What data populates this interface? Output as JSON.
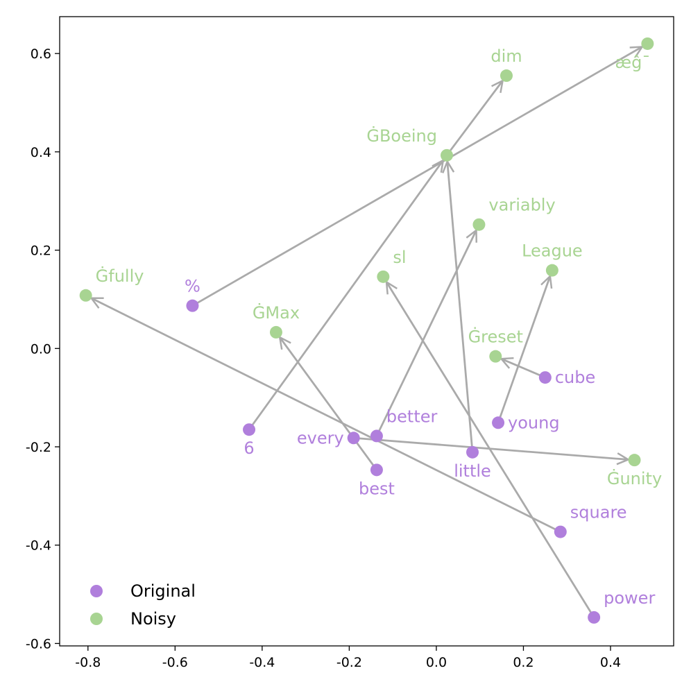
{
  "chart_data": {
    "type": "scatter",
    "title": "",
    "xlabel": "",
    "ylabel": "",
    "xlim": [
      -0.865,
      0.545
    ],
    "ylim": [
      -0.605,
      0.675
    ],
    "xticks": [
      -0.8,
      -0.6,
      -0.4,
      -0.2,
      0.0,
      0.2,
      0.4
    ],
    "xtick_labels": [
      "-0.8",
      "-0.6",
      "-0.4",
      "-0.2",
      "0.0",
      "0.2",
      "0.4"
    ],
    "yticks": [
      -0.6,
      -0.4,
      -0.2,
      0.0,
      0.2,
      0.4,
      0.6
    ],
    "ytick_labels": [
      "-0.6",
      "-0.4",
      "-0.2",
      "0.0",
      "0.2",
      "0.4",
      "0.6"
    ],
    "grid": false,
    "legend_position": "lower-left",
    "colors": {
      "original": "#b07fdc",
      "noisy": "#a8d492",
      "arrow": "#aaaaaa"
    },
    "series": [
      {
        "name": "Original",
        "points": [
          {
            "label": "%",
            "x": -0.56,
            "y": 0.087,
            "label_pos": "above"
          },
          {
            "label": "6",
            "x": -0.43,
            "y": -0.165,
            "label_pos": "below"
          },
          {
            "label": "every",
            "x": -0.19,
            "y": -0.182,
            "label_pos": "left"
          },
          {
            "label": "better",
            "x": -0.137,
            "y": -0.178,
            "label_pos": "upper-right"
          },
          {
            "label": "best",
            "x": -0.137,
            "y": -0.247,
            "label_pos": "below"
          },
          {
            "label": "little",
            "x": 0.083,
            "y": -0.211,
            "label_pos": "below"
          },
          {
            "label": "young",
            "x": 0.142,
            "y": -0.151,
            "label_pos": "right"
          },
          {
            "label": "cube",
            "x": 0.25,
            "y": -0.059,
            "label_pos": "right"
          },
          {
            "label": "square",
            "x": 0.285,
            "y": -0.373,
            "label_pos": "upper-right"
          },
          {
            "label": "power",
            "x": 0.362,
            "y": -0.547,
            "label_pos": "upper-right"
          }
        ]
      },
      {
        "name": "Noisy",
        "points": [
          {
            "label": "Ġfully",
            "x": -0.805,
            "y": 0.108,
            "label_pos": "upper-right"
          },
          {
            "label": "ĠMax",
            "x": -0.368,
            "y": 0.033,
            "label_pos": "above"
          },
          {
            "label": "sl",
            "x": -0.122,
            "y": 0.146,
            "label_pos": "upper-right"
          },
          {
            "label": "ĠBoeing",
            "x": 0.024,
            "y": 0.393,
            "label_pos": "upper-left"
          },
          {
            "label": "variably",
            "x": 0.098,
            "y": 0.252,
            "label_pos": "upper-right"
          },
          {
            "label": "Ġreset",
            "x": 0.136,
            "y": -0.016,
            "label_pos": "above"
          },
          {
            "label": "dim",
            "x": 0.161,
            "y": 0.555,
            "label_pos": "above"
          },
          {
            "label": "League",
            "x": 0.266,
            "y": 0.159,
            "label_pos": "above"
          },
          {
            "label": "Ġunity",
            "x": 0.455,
            "y": -0.227,
            "label_pos": "below"
          },
          {
            "label": "æĝ¯",
            "x": 0.485,
            "y": 0.62,
            "label_pos": "below-left"
          }
        ]
      }
    ],
    "arrows": [
      {
        "from": [
          -0.56,
          0.087
        ],
        "to": [
          0.485,
          0.62
        ]
      },
      {
        "from": [
          -0.43,
          -0.165
        ],
        "to": [
          0.024,
          0.393
        ]
      },
      {
        "from": [
          0.024,
          0.393
        ],
        "to": [
          0.161,
          0.555
        ]
      },
      {
        "from": [
          0.083,
          -0.211
        ],
        "to": [
          0.024,
          0.393
        ]
      },
      {
        "from": [
          -0.137,
          -0.178
        ],
        "to": [
          0.098,
          0.252
        ]
      },
      {
        "from": [
          -0.137,
          -0.247
        ],
        "to": [
          -0.368,
          0.033
        ]
      },
      {
        "from": [
          0.285,
          -0.373
        ],
        "to": [
          -0.805,
          0.108
        ]
      },
      {
        "from": [
          0.362,
          -0.547
        ],
        "to": [
          -0.122,
          0.146
        ]
      },
      {
        "from": [
          -0.19,
          -0.182
        ],
        "to": [
          0.455,
          -0.227
        ]
      },
      {
        "from": [
          0.142,
          -0.151
        ],
        "to": [
          0.266,
          0.159
        ]
      },
      {
        "from": [
          0.25,
          -0.059
        ],
        "to": [
          0.136,
          -0.016
        ]
      }
    ]
  }
}
